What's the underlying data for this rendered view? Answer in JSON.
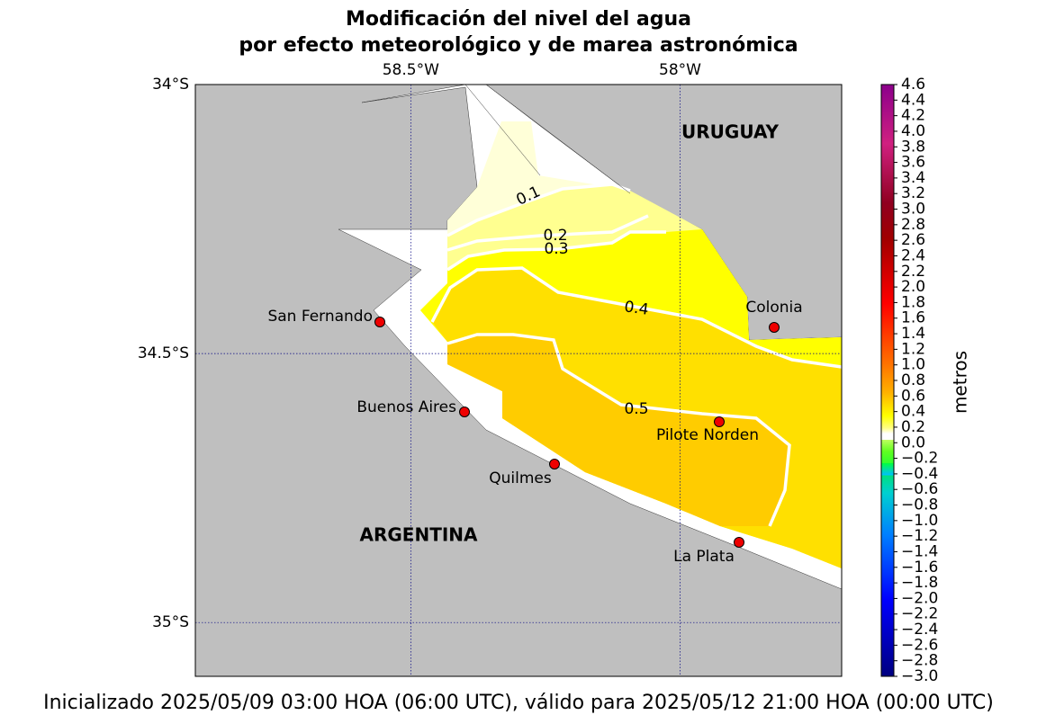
{
  "title": [
    "Modificación del nivel del agua",
    "por efecto meteorológico y de marea astronómica"
  ],
  "map": {
    "lonlim": [
      -58.9,
      -57.7
    ],
    "latlim": [
      -35.1,
      -34
    ],
    "lon_ticks": [
      {
        "value": -58.5,
        "label": "58.5°W"
      },
      {
        "value": -58,
        "label": "58°W"
      }
    ],
    "lat_ticks": [
      {
        "value": -34,
        "label": "34°S"
      },
      {
        "value": -34.5,
        "label": "34.5°S"
      },
      {
        "value": -35,
        "label": "35°S"
      }
    ],
    "countries": [
      "URUGUAY",
      "ARGENTINA"
    ],
    "places": [
      "San Fernando",
      "Buenos Aires",
      "Quilmes",
      "Colonia",
      "Pilote Norden",
      "La Plata"
    ],
    "contour_labels": [
      0.1,
      0.2,
      0.3,
      0.4,
      0.5
    ]
  },
  "colorbar": {
    "label": "metros",
    "lim": [
      -3,
      4.6
    ],
    "ticks": [
      4.6,
      4.4,
      4.2,
      {
        "value": 4,
        "label": "4.0"
      },
      3.8,
      3.6,
      3.4,
      3.2,
      {
        "value": 3,
        "label": "3.0"
      },
      2.8,
      2.6,
      2.4,
      2.2,
      {
        "value": 2,
        "label": "2.0"
      },
      1.8,
      1.6,
      1.4,
      1.2,
      {
        "value": 1,
        "label": "1.0"
      },
      0.8,
      0.6,
      0.4,
      0.2,
      {
        "value": 0,
        "label": "0.0"
      },
      {
        "value": -0.2,
        "label": "−0.2"
      },
      {
        "value": -0.4,
        "label": "−0.4"
      },
      {
        "value": -0.6,
        "label": "−0.6"
      },
      {
        "value": -0.8,
        "label": "−0.8"
      },
      {
        "value": -1,
        "label": "−1.0"
      },
      {
        "value": -1.2,
        "label": "−1.2"
      },
      {
        "value": -1.4,
        "label": "−1.4"
      },
      {
        "value": -1.6,
        "label": "−1.6"
      },
      {
        "value": -1.8,
        "label": "−1.8"
      },
      {
        "value": -2,
        "label": "−2.0"
      },
      {
        "value": -2.2,
        "label": "−2.2"
      },
      {
        "value": -2.4,
        "label": "−2.4"
      },
      {
        "value": -2.6,
        "label": "−2.6"
      },
      {
        "value": -2.8,
        "label": "−2.8"
      },
      {
        "value": -3,
        "label": "−3.0"
      }
    ]
  },
  "footer": "Inicializado 2025/05/09 03:00 HOA (06:00 UTC), válido para 2025/05/12 21:00 HOA (00:00 UTC)"
}
